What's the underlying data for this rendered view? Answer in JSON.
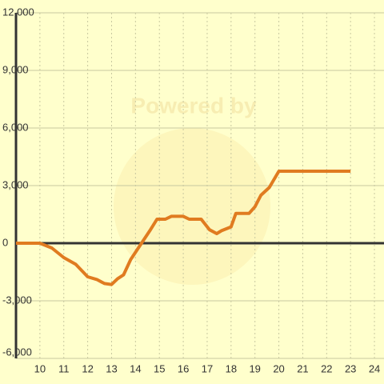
{
  "chart_data": {
    "type": "line",
    "watermark": "Powered by",
    "x": [
      9,
      10,
      10.5,
      11,
      11.5,
      12,
      12.4,
      12.7,
      13,
      13.25,
      13.5,
      13.8,
      14.2,
      14.6,
      14.9,
      15.25,
      15.5,
      16,
      16.25,
      16.75,
      17.1,
      17.4,
      17.6,
      18,
      18.2,
      18.75,
      19,
      19.25,
      19.6,
      20,
      23
    ],
    "series": [
      {
        "color": "#e07b20",
        "values": [
          0,
          0,
          -250,
          -750,
          -1100,
          -1750,
          -1900,
          -2100,
          -2150,
          -1850,
          -1650,
          -850,
          -100,
          650,
          1250,
          1250,
          1400,
          1400,
          1250,
          1250,
          700,
          500,
          650,
          850,
          1550,
          1550,
          1900,
          2500,
          2900,
          3750,
          3750
        ]
      }
    ],
    "xlim": [
      9,
      24.4
    ],
    "ylim": [
      -6000,
      12000
    ],
    "xticks": [
      10,
      11,
      12,
      13,
      14,
      15,
      16,
      17,
      18,
      19,
      20,
      21,
      22,
      23,
      24
    ],
    "yticks": [
      {
        "value": 12000,
        "label": "12,000"
      },
      {
        "value": 9000,
        "label": "9,000"
      },
      {
        "value": 6000,
        "label": "6,000"
      },
      {
        "value": 3000,
        "label": "3,000"
      },
      0,
      {
        "value": -3000,
        "label": "-3,000"
      },
      {
        "value": -6000,
        "label": "-6,000"
      }
    ],
    "grid": true
  }
}
